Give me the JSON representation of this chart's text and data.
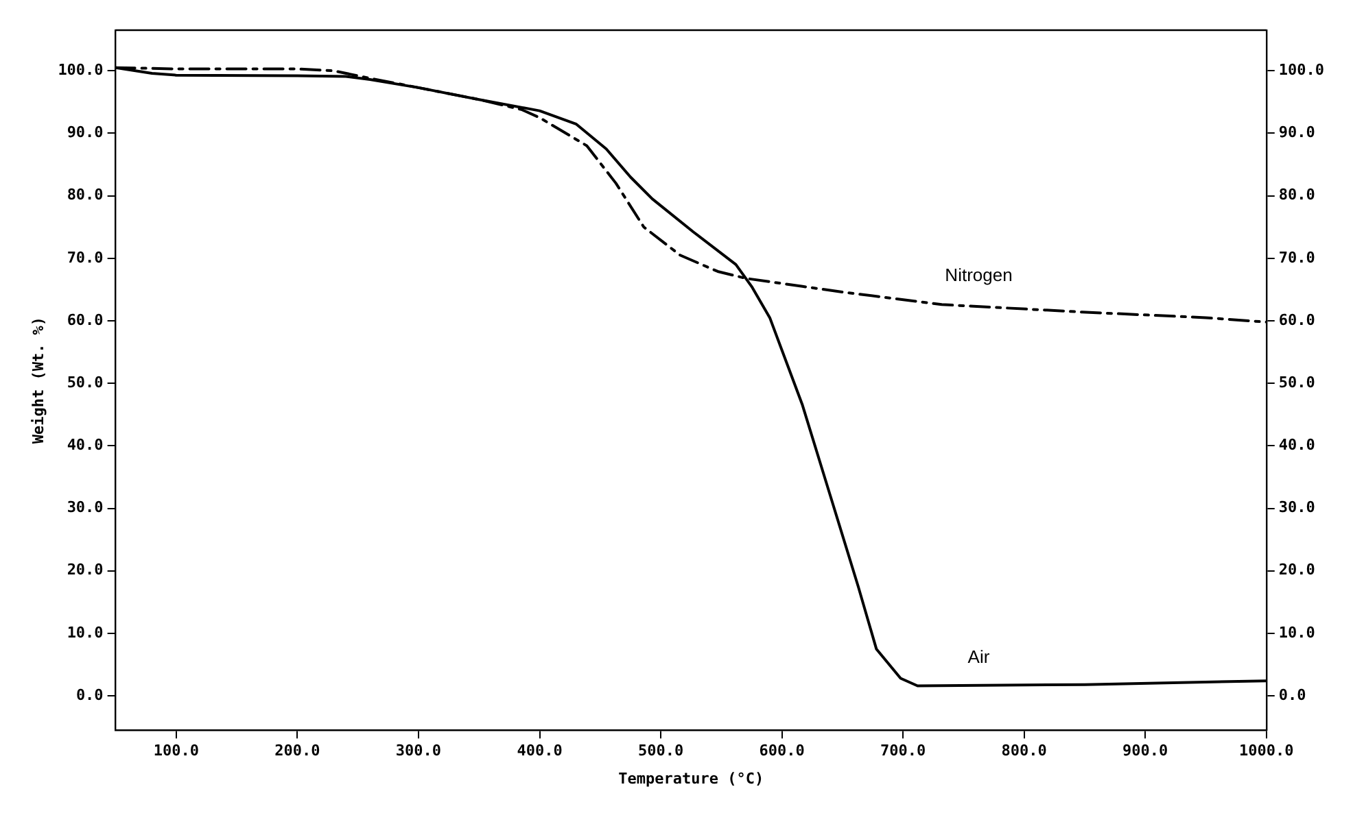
{
  "chart_data": {
    "type": "line",
    "xlabel": "Temperature (°C)",
    "ylabel": "Weight (Wt. %)",
    "xlim": [
      50,
      1000
    ],
    "ylim": [
      -5.5,
      106.5
    ],
    "y2lim": [
      -5.5,
      106.5
    ],
    "xticks": [
      {
        "value": 100,
        "label": "100.0"
      },
      {
        "value": 200,
        "label": "200.0"
      },
      {
        "value": 300,
        "label": "300.0"
      },
      {
        "value": 400,
        "label": "400.0"
      },
      {
        "value": 500,
        "label": "500.0"
      },
      {
        "value": 600,
        "label": "600.0"
      },
      {
        "value": 700,
        "label": "700.0"
      },
      {
        "value": 800,
        "label": "800.0"
      },
      {
        "value": 900,
        "label": "900.0"
      },
      {
        "value": 1000,
        "label": "1000.0"
      }
    ],
    "yticks": [
      {
        "value": 0,
        "label": "0.0"
      },
      {
        "value": 10,
        "label": "10.0"
      },
      {
        "value": 20,
        "label": "20.0"
      },
      {
        "value": 30,
        "label": "30.0"
      },
      {
        "value": 40,
        "label": "40.0"
      },
      {
        "value": 50,
        "label": "50.0"
      },
      {
        "value": 60,
        "label": "60.0"
      },
      {
        "value": 70,
        "label": "70.0"
      },
      {
        "value": 80,
        "label": "80.0"
      },
      {
        "value": 90,
        "label": "90.0"
      },
      {
        "value": 100,
        "label": "100.0"
      }
    ],
    "y2ticks": [
      {
        "value": 0,
        "label": "0.0"
      },
      {
        "value": 10,
        "label": "10.0"
      },
      {
        "value": 20,
        "label": "20.0"
      },
      {
        "value": 30,
        "label": "30.0"
      },
      {
        "value": 40,
        "label": "40.0"
      },
      {
        "value": 50,
        "label": "50.0"
      },
      {
        "value": 60,
        "label": "60.0"
      },
      {
        "value": 70,
        "label": "70.0"
      },
      {
        "value": 80,
        "label": "80.0"
      },
      {
        "value": 90,
        "label": "90.0"
      },
      {
        "value": 100,
        "label": "100.0"
      }
    ],
    "grid": false,
    "legend": false,
    "marker": "none",
    "series": [
      {
        "name": "Air",
        "color": "#000000",
        "line_style": "solid",
        "x": [
          50,
          80,
          100,
          200,
          240,
          260,
          300,
          350,
          400,
          430,
          455,
          475,
          493,
          527,
          562,
          575,
          590,
          617,
          640,
          663,
          678,
          698,
          712,
          850,
          1000
        ],
        "values": [
          100.5,
          99.6,
          99.3,
          99.2,
          99.1,
          98.6,
          97.3,
          95.4,
          93.6,
          91.5,
          87.5,
          83,
          79.5,
          74.2,
          69,
          65.5,
          60.5,
          46.5,
          32,
          17.5,
          7.5,
          2.8,
          1.6,
          1.8,
          2.4
        ]
      },
      {
        "name": "Nitrogen",
        "color": "#000000",
        "line_style": "dashed",
        "x": [
          50,
          100,
          200,
          230,
          260,
          300,
          350,
          385,
          400,
          439,
          463,
          486,
          516,
          547,
          570,
          617,
          650,
          732,
          848,
          950,
          1000
        ],
        "values": [
          100.5,
          100.3,
          100.3,
          100,
          98.8,
          97.3,
          95.4,
          93.8,
          92.5,
          88,
          82,
          75,
          70.5,
          67.9,
          66.8,
          65.5,
          64.6,
          62.6,
          61.4,
          60.5,
          59.8
        ]
      }
    ]
  }
}
